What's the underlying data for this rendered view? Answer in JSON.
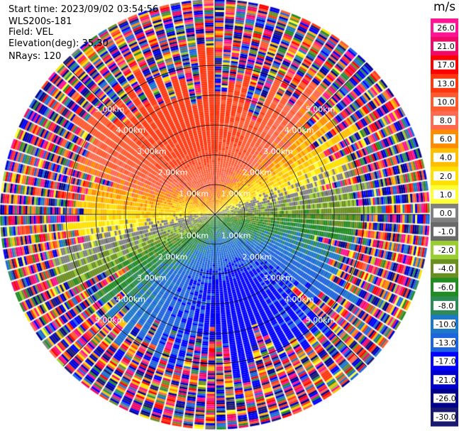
{
  "info": {
    "start_time": "Start time: 2023/09/02 03:54:56",
    "device": "WLS200s-181",
    "field": "Field: VEL",
    "elevation": "Elevation(deg): 35.30",
    "nrays": "NRays: 120"
  },
  "colors": {
    "background": "#ffffff",
    "grid": "#000000"
  },
  "chart_data": {
    "type": "heatmap",
    "projection": "polar-ppi",
    "n_rays": 120,
    "range_rings_km": [
      1,
      2,
      3,
      4,
      5
    ],
    "range_ring_labels": [
      "1.00km",
      "2.00km",
      "3.00km",
      "4.00km",
      "5.00km"
    ],
    "max_range_km": 7.2,
    "velocity_field": {
      "bulk_max_ms": 15,
      "direction_of_max_deg_from_north": 345,
      "valid_range_km_median": 4.6,
      "noise_beyond_valid_range": true
    },
    "colorbar": {
      "unit": "m/s",
      "ticks": [
        "26.0",
        "21.0",
        "17.0",
        "13.0",
        "10.0",
        "8.0",
        "6.0",
        "4.0",
        "2.0",
        "1.0",
        "0.0",
        "-1.0",
        "-2.0",
        "-4.0",
        "-6.0",
        "-8.0",
        "-10.0",
        "-13.0",
        "-17.0",
        "-21.0",
        "-26.0",
        "-30.0"
      ],
      "boundaries": [
        30,
        26,
        21,
        17,
        13,
        10,
        8,
        6,
        4,
        2,
        1,
        0,
        -1,
        -2,
        -4,
        -6,
        -8,
        -10,
        -13,
        -17,
        -21,
        -26,
        -30
      ],
      "colors": [
        "#ff1493",
        "#ee0a67",
        "#ff0000",
        "#ff3810",
        "#ff5a30",
        "#ff6a50",
        "#ff8c00",
        "#ffbf00",
        "#ffe000",
        "#ffff33",
        "#808080",
        "#696969",
        "#9acd32",
        "#6b8e23",
        "#228b22",
        "#2e8b57",
        "#1e78c8",
        "#1e64dc",
        "#0000ff",
        "#0000cd",
        "#00008b",
        "#191970"
      ]
    }
  }
}
